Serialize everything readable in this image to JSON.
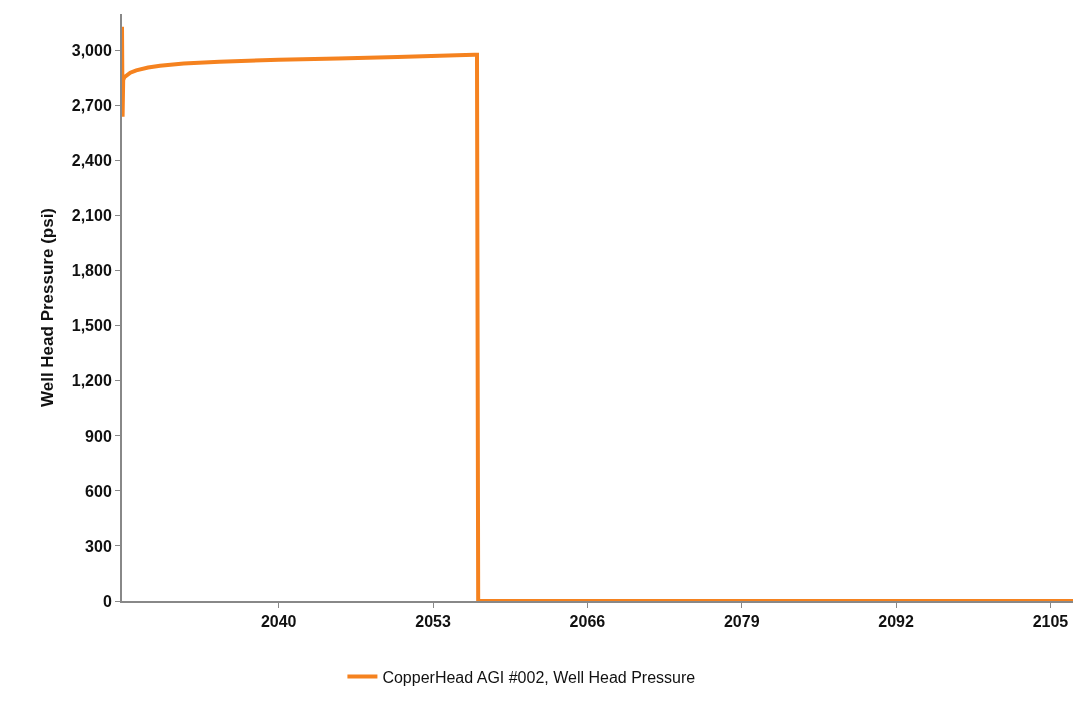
{
  "chart_data": {
    "type": "line",
    "ylabel": "Well Head Pressure (psi)",
    "x": [
      2026.8,
      2026.85,
      2026.9,
      2027.0,
      2027.5,
      2028,
      2029,
      2030,
      2032,
      2035,
      2040,
      2045,
      2050,
      2055,
      2056.5,
      2056.7,
      2056.8,
      2060,
      2080,
      2106.9
    ],
    "series": [
      {
        "name": "CopperHead AGI #002, Well Head Pressure",
        "color": "#f5821f",
        "values": [
          3130,
          2640,
          2840,
          2855,
          2880,
          2893,
          2908,
          2918,
          2930,
          2940,
          2950,
          2958,
          2966,
          2975,
          2978,
          2978,
          0,
          0,
          0,
          0
        ]
      }
    ],
    "xlim": [
      2026.8,
      2106.9
    ],
    "xticks": [
      2040,
      2053,
      2066,
      2079,
      2092,
      2105
    ],
    "ylim": [
      0,
      3200
    ],
    "yticks": [
      0,
      300,
      600,
      900,
      {
        "value": 1200,
        "label": "1,200"
      },
      {
        "value": 1500,
        "label": "1,500"
      },
      {
        "value": 1800,
        "label": "1,800"
      },
      {
        "value": 2100,
        "label": "2,100"
      },
      {
        "value": 2400,
        "label": "2,400"
      },
      {
        "value": 2700,
        "label": "2,700"
      },
      {
        "value": 3000,
        "label": "3,000"
      }
    ],
    "grid": false,
    "legend": "bottom",
    "marker": "none",
    "line_style": "solid"
  }
}
